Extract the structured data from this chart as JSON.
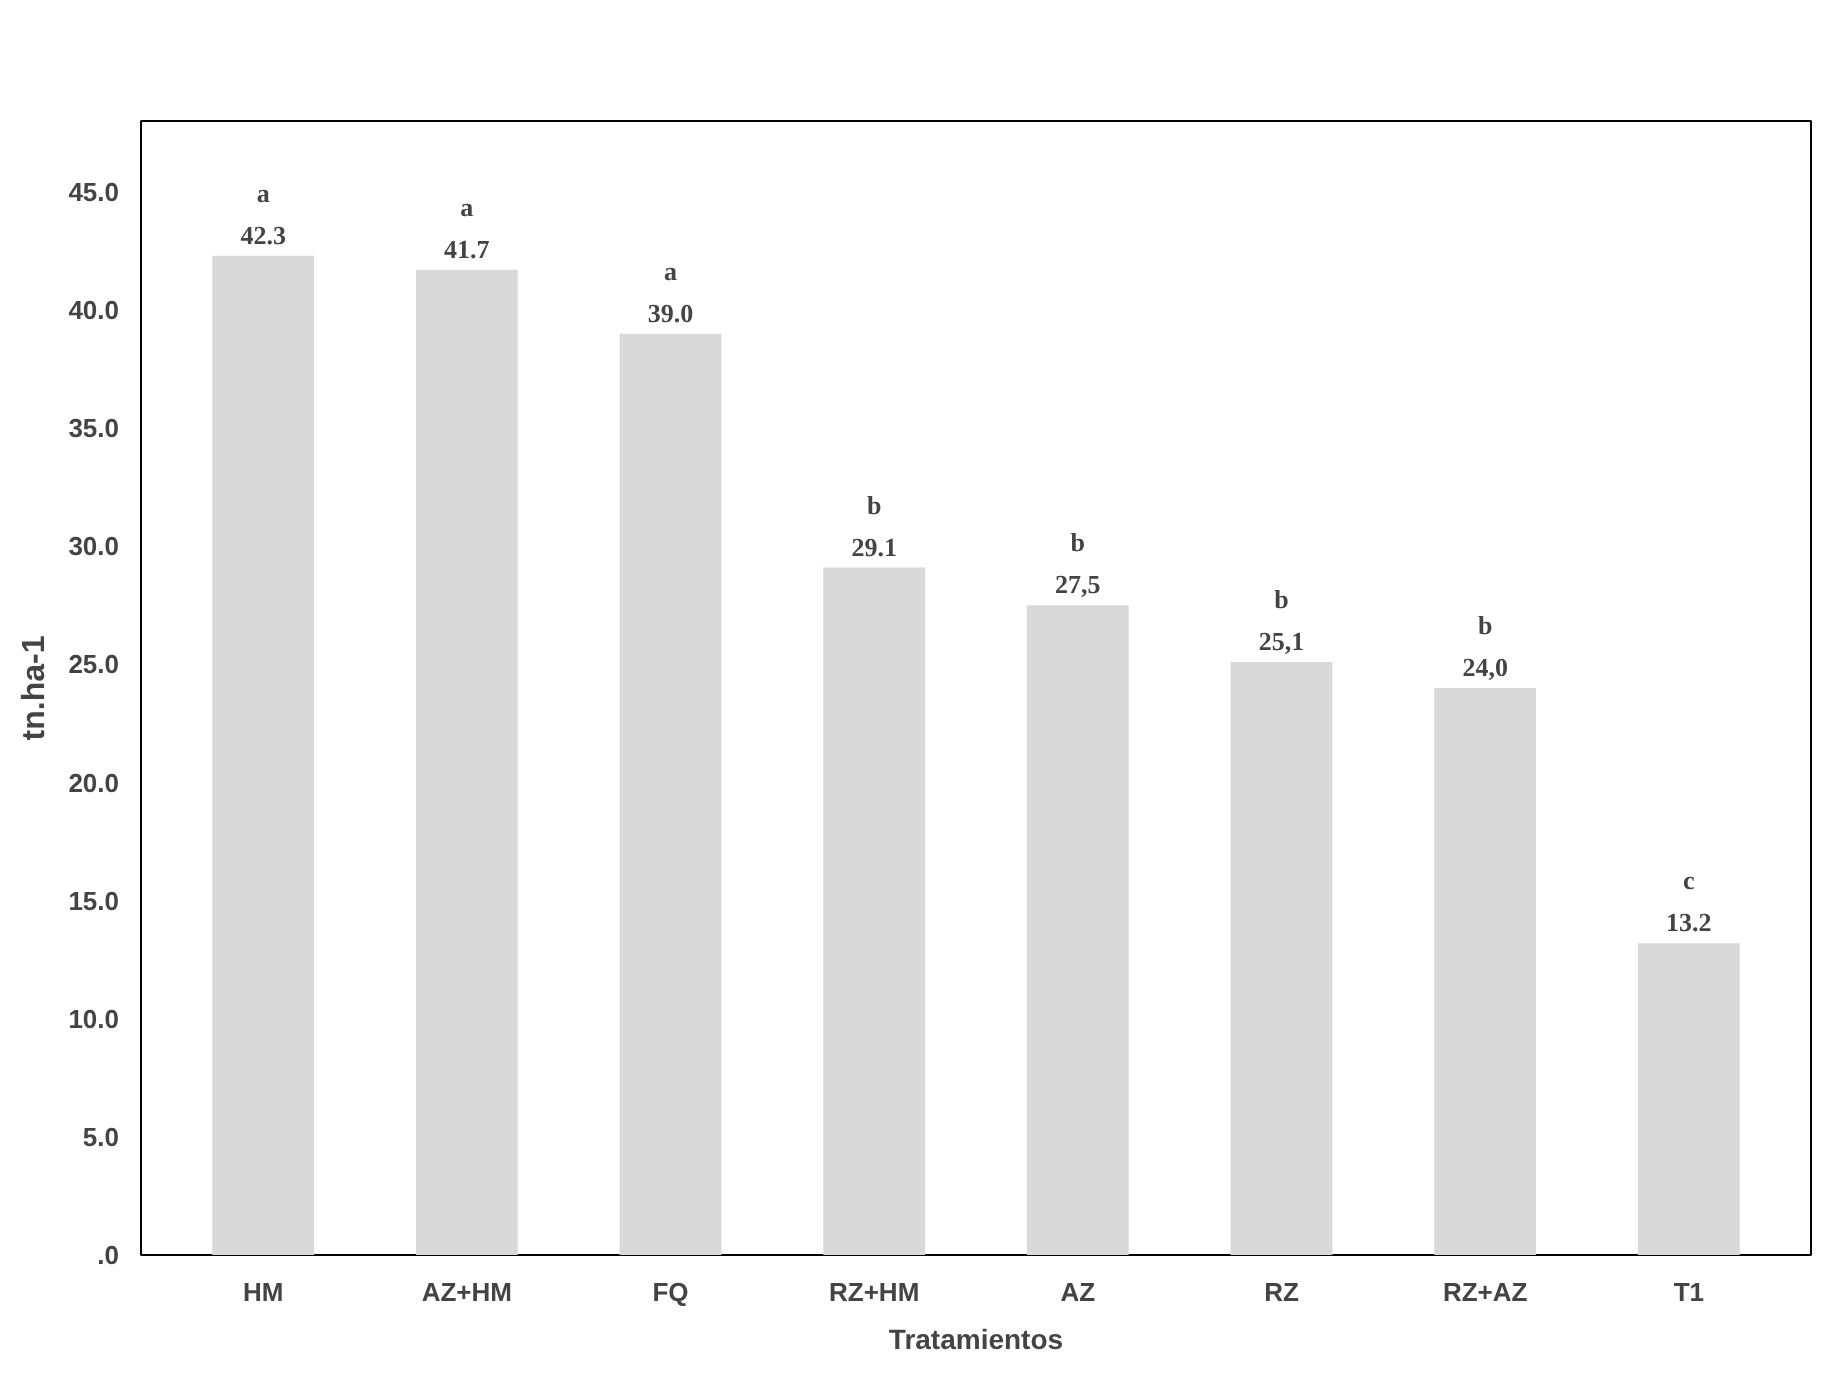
{
  "chart_data": {
    "type": "bar",
    "xlabel": "Tratamientos",
    "ylabel": "tn.ha-1",
    "categories": [
      "HM",
      "AZ+HM",
      "FQ",
      "RZ+HM",
      "AZ",
      "RZ",
      "RZ+AZ",
      "T1"
    ],
    "values": [
      42.3,
      41.7,
      39.0,
      29.1,
      27.5,
      25.1,
      24.0,
      13.2
    ],
    "value_labels": [
      "42.3",
      "41.7",
      "39.0",
      "29.1",
      "27,5",
      "25,1",
      "24,0",
      "13.2"
    ],
    "color": "#d9d9d9",
    "ylim": [
      0,
      48
    ],
    "yticks": [
      {
        "value": 0,
        "label": ".0"
      },
      {
        "value": 5,
        "label": "5.0"
      },
      {
        "value": 10,
        "label": "10.0"
      },
      {
        "value": 15,
        "label": "15.0"
      },
      {
        "value": 20,
        "label": "20.0"
      },
      {
        "value": 25,
        "label": "25.0"
      },
      {
        "value": 30,
        "label": "30.0"
      },
      {
        "value": 35,
        "label": "35.0"
      },
      {
        "value": 40,
        "label": "40.0"
      },
      {
        "value": 45,
        "label": "45.0"
      }
    ],
    "annotations": [
      {
        "text": "a",
        "x": "HM",
        "y": 42.3
      },
      {
        "text": "a",
        "x": "AZ+HM",
        "y": 41.7
      },
      {
        "text": "a",
        "x": "FQ",
        "y": 39.0
      },
      {
        "text": "b",
        "x": "RZ+HM",
        "y": 29.1
      },
      {
        "text": "b",
        "x": "AZ",
        "y": 27.5
      },
      {
        "text": "b",
        "x": "RZ",
        "y": 25.1
      },
      {
        "text": "b",
        "x": "RZ+AZ",
        "y": 24.0
      },
      {
        "text": "c",
        "x": "T1",
        "y": 13.2
      }
    ],
    "grid": false
  }
}
